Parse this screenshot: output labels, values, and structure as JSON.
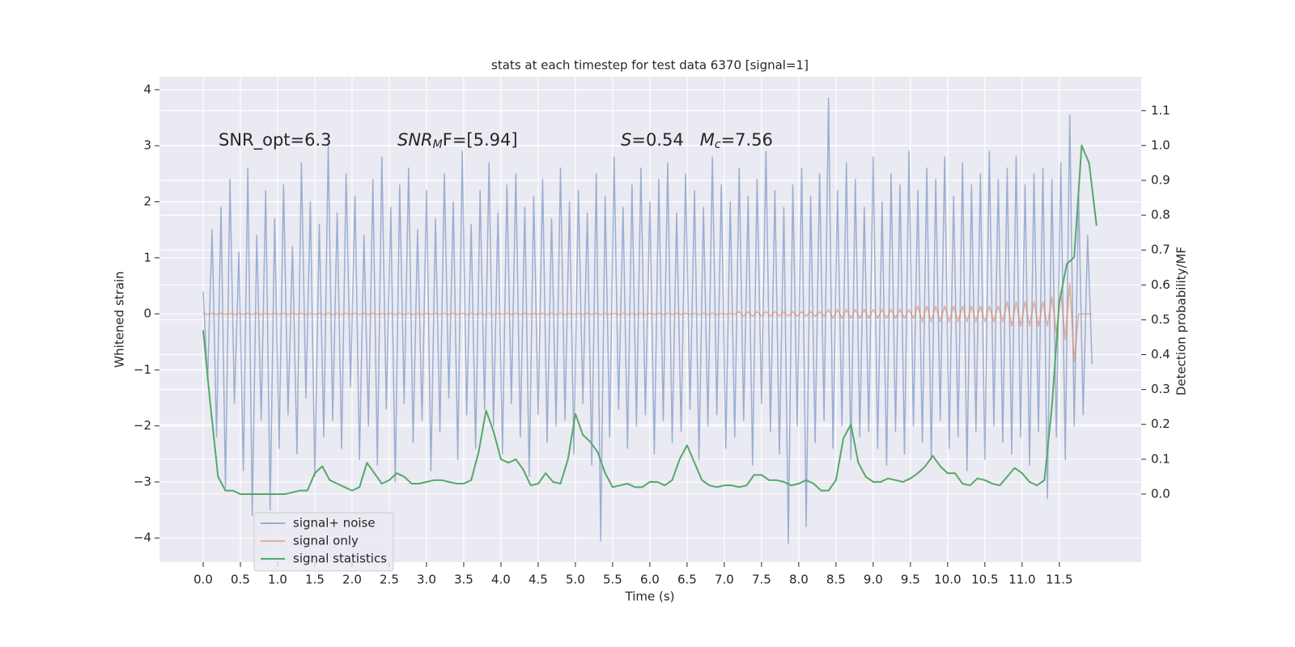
{
  "chart_data": {
    "type": "line",
    "title": "stats at each timestep for test data 6370 [signal=1]",
    "xlabel": "Time (s)",
    "ylabel": "Whitened strain",
    "y2label": "Detection probability/MF",
    "xlim": [
      -0.587,
      12.6
    ],
    "ylim": [
      -4.43,
      4.23
    ],
    "y2lim": [
      -0.195,
      1.197
    ],
    "xticks": [
      {
        "value": 0,
        "label": "0.0"
      },
      0.5,
      {
        "value": 1,
        "label": "1.0"
      },
      1.5,
      {
        "value": 2,
        "label": "2.0"
      },
      2.5,
      {
        "value": 3,
        "label": "3.0"
      },
      3.5,
      {
        "value": 4,
        "label": "4.0"
      },
      4.5,
      {
        "value": 5,
        "label": "5.0"
      },
      5.5,
      {
        "value": 6,
        "label": "6.0"
      },
      6.5,
      {
        "value": 7,
        "label": "7.0"
      },
      7.5,
      {
        "value": 8,
        "label": "8.0"
      },
      8.5,
      {
        "value": 9,
        "label": "9.0"
      },
      9.5,
      {
        "value": 10,
        "label": "10.0"
      },
      10.5,
      {
        "value": 11,
        "label": "11.0"
      },
      11.5
    ],
    "yticks": [
      {
        "value": -4,
        "label": "−4"
      },
      {
        "value": -3,
        "label": "−3"
      },
      {
        "value": -2,
        "label": "−2"
      },
      {
        "value": -1,
        "label": "−1"
      },
      0,
      1,
      2,
      3,
      4
    ],
    "y2ticks": [
      {
        "value": 0,
        "label": "0.0"
      },
      0.1,
      0.2,
      0.3,
      0.4,
      0.5,
      0.6,
      0.7,
      0.8,
      0.9,
      {
        "value": 1,
        "label": "1.0"
      },
      1.1
    ],
    "grid": true,
    "legend": "lower left",
    "annotations": [
      [
        {
          "text": "SNR_opt=6.3",
          "style": "normal"
        }
      ],
      [
        {
          "text": "SNR",
          "style": "italic"
        },
        {
          "text": "M",
          "style": "italic-sub"
        },
        {
          "text": "F=[5.94]",
          "style": "normal"
        }
      ],
      [
        {
          "text": "S",
          "style": "italic"
        },
        {
          "text": "=0.54   ",
          "style": "normal"
        },
        {
          "text": "M",
          "style": "italic"
        },
        {
          "text": "c",
          "style": "italic-sub"
        },
        {
          "text": "=7.56",
          "style": "normal"
        }
      ]
    ],
    "x": [
      0,
      0.06,
      0.12,
      0.18,
      0.24,
      0.3,
      0.36,
      0.42,
      0.48,
      0.54,
      0.6,
      0.66,
      0.72,
      0.78,
      0.84,
      0.9,
      0.96,
      1.02,
      1.08,
      1.14,
      1.2,
      1.26,
      1.32,
      1.38,
      1.44,
      1.5,
      1.56,
      1.62,
      1.68,
      1.74,
      1.8,
      1.86,
      1.92,
      1.98,
      2.04,
      2.1,
      2.16,
      2.22,
      2.28,
      2.34,
      2.4,
      2.46,
      2.52,
      2.58,
      2.64,
      2.7,
      2.76,
      2.82,
      2.88,
      2.94,
      3.0,
      3.06,
      3.12,
      3.18,
      3.24,
      3.3,
      3.36,
      3.42,
      3.48,
      3.54,
      3.6,
      3.66,
      3.72,
      3.78,
      3.84,
      3.9,
      3.96,
      4.02,
      4.08,
      4.14,
      4.2,
      4.26,
      4.32,
      4.38,
      4.44,
      4.5,
      4.56,
      4.62,
      4.68,
      4.74,
      4.8,
      4.86,
      4.92,
      4.98,
      5.04,
      5.1,
      5.16,
      5.22,
      5.28,
      5.34,
      5.4,
      5.46,
      5.52,
      5.58,
      5.64,
      5.7,
      5.76,
      5.82,
      5.88,
      5.94,
      6.0,
      6.06,
      6.12,
      6.18,
      6.24,
      6.3,
      6.36,
      6.42,
      6.48,
      6.54,
      6.6,
      6.66,
      6.72,
      6.78,
      6.84,
      6.9,
      6.96,
      7.02,
      7.08,
      7.14,
      7.2,
      7.26,
      7.32,
      7.38,
      7.44,
      7.5,
      7.56,
      7.62,
      7.68,
      7.74,
      7.8,
      7.86,
      7.92,
      7.98,
      8.04,
      8.1,
      8.16,
      8.22,
      8.28,
      8.34,
      8.4,
      8.46,
      8.52,
      8.58,
      8.64,
      8.7,
      8.76,
      8.82,
      8.88,
      8.94,
      9.0,
      9.06,
      9.12,
      9.18,
      9.24,
      9.3,
      9.36,
      9.42,
      9.48,
      9.54,
      9.6,
      9.66,
      9.72,
      9.78,
      9.84,
      9.9,
      9.96,
      10.02,
      10.08,
      10.14,
      10.2,
      10.26,
      10.32,
      10.38,
      10.44,
      10.5,
      10.56,
      10.62,
      10.68,
      10.74,
      10.8,
      10.86,
      10.92,
      10.98,
      11.04,
      11.1,
      11.16,
      11.22,
      11.28,
      11.34,
      11.4,
      11.46,
      11.52,
      11.58,
      11.64,
      11.7,
      11.76,
      11.82,
      11.88,
      11.94
    ],
    "series": [
      {
        "name": "signal+ noise",
        "color": "#4c72b0",
        "opacity": 0.5,
        "values": [
          0.4,
          -1.2,
          1.5,
          -2.2,
          1.9,
          -3.1,
          2.4,
          -1.6,
          1.1,
          -2.8,
          2.6,
          -3.6,
          1.4,
          -1.9,
          2.2,
          -3.5,
          1.7,
          -2.4,
          2.3,
          -1.8,
          1.2,
          -2.5,
          2.7,
          -1.5,
          2.0,
          -2.9,
          1.6,
          -2.2,
          3.0,
          -1.9,
          1.8,
          -2.4,
          2.5,
          -1.3,
          2.1,
          -2.6,
          1.4,
          -2.0,
          2.4,
          -2.7,
          2.8,
          -1.7,
          1.9,
          -3.0,
          2.3,
          -1.6,
          2.6,
          -2.3,
          1.5,
          -1.9,
          2.2,
          -2.8,
          1.7,
          -2.1,
          2.5,
          -1.5,
          2.0,
          -2.6,
          2.9,
          -1.8,
          1.6,
          -2.4,
          2.2,
          -1.7,
          2.7,
          -2.0,
          1.8,
          -2.5,
          2.3,
          -1.6,
          2.5,
          -2.2,
          1.9,
          -2.9,
          2.1,
          -1.8,
          2.4,
          -2.3,
          1.7,
          -2.0,
          2.6,
          -1.9,
          2.0,
          -2.5,
          2.2,
          -1.6,
          1.8,
          -2.7,
          2.5,
          -4.05,
          2.1,
          -2.2,
          2.8,
          -1.7,
          1.9,
          -2.4,
          2.3,
          -2.0,
          2.6,
          -1.8,
          2.0,
          -2.5,
          2.4,
          -1.9,
          2.7,
          -2.3,
          1.8,
          -2.1,
          2.5,
          -1.7,
          2.2,
          -2.6,
          1.9,
          -2.0,
          2.8,
          -1.8,
          2.3,
          -2.4,
          2.0,
          -2.2,
          2.6,
          -1.9,
          2.1,
          -2.7,
          2.4,
          -1.6,
          2.9,
          -2.1,
          2.2,
          -2.5,
          1.9,
          -4.1,
          2.3,
          -2.0,
          2.6,
          -3.8,
          2.1,
          -2.3,
          2.5,
          -1.9,
          3.85,
          -2.4,
          2.2,
          -2.0,
          2.7,
          -2.6,
          2.4,
          -2.2,
          1.9,
          -2.1,
          2.8,
          -2.4,
          2.0,
          -2.7,
          2.5,
          -2.1,
          2.3,
          -2.5,
          2.9,
          -2.0,
          2.2,
          -2.3,
          2.6,
          -2.6,
          2.4,
          -1.9,
          2.8,
          -2.4,
          2.1,
          -2.2,
          2.7,
          -2.8,
          2.3,
          -2.1,
          2.5,
          -2.6,
          2.9,
          -2.0,
          2.4,
          -2.3,
          2.6,
          -2.5,
          2.8,
          -2.2,
          2.3,
          -2.7,
          2.5,
          -2.1,
          2.6,
          -3.3,
          2.4,
          -2.2,
          2.7,
          -2.6,
          3.55,
          -2.0,
          2.1,
          -1.8,
          1.4,
          -0.9
        ]
      },
      {
        "name": "signal only",
        "color": "#dd8452",
        "opacity": 0.6,
        "values": [
          0.01,
          -0.01,
          0.01,
          -0.01,
          0.01,
          -0.01,
          0.01,
          -0.01,
          0.01,
          -0.01,
          0.01,
          -0.01,
          0.01,
          -0.01,
          0.01,
          -0.01,
          0.01,
          -0.01,
          0.01,
          -0.01,
          0.01,
          -0.01,
          0.01,
          -0.01,
          0.01,
          -0.01,
          0.01,
          -0.01,
          0.01,
          -0.01,
          0.01,
          -0.01,
          0.01,
          -0.01,
          0.01,
          -0.01,
          0.01,
          -0.01,
          0.01,
          -0.01,
          0.01,
          -0.01,
          0.01,
          -0.01,
          0.01,
          -0.01,
          0.01,
          -0.01,
          0.01,
          -0.01,
          0.01,
          -0.01,
          0.01,
          -0.01,
          0.01,
          -0.01,
          0.01,
          -0.01,
          0.01,
          -0.01,
          0.01,
          -0.01,
          0.01,
          -0.01,
          0.01,
          -0.01,
          0.01,
          -0.01,
          0.01,
          -0.01,
          0.01,
          -0.01,
          0.01,
          -0.01,
          0.01,
          -0.01,
          0.01,
          -0.01,
          0.01,
          -0.01,
          0.01,
          -0.01,
          0.01,
          -0.01,
          0.01,
          -0.01,
          0.01,
          -0.01,
          0.01,
          -0.01,
          0.01,
          -0.01,
          0.01,
          -0.01,
          0.01,
          -0.01,
          0.01,
          -0.01,
          0.01,
          -0.01,
          0.01,
          -0.01,
          0.01,
          -0.01,
          0.01,
          -0.01,
          0.01,
          -0.01,
          0.01,
          -0.01,
          0.01,
          -0.01,
          0.01,
          -0.01,
          0.01,
          -0.01,
          0.01,
          -0.01,
          0.01,
          -0.01,
          0.04,
          -0.04,
          0.04,
          -0.04,
          0.04,
          -0.04,
          0.04,
          -0.04,
          0.04,
          -0.04,
          0.04,
          -0.04,
          0.04,
          -0.04,
          0.04,
          -0.04,
          0.04,
          -0.04,
          0.04,
          -0.04,
          0.08,
          -0.08,
          0.08,
          -0.08,
          0.08,
          -0.08,
          0.08,
          -0.08,
          0.08,
          -0.08,
          0.08,
          -0.08,
          0.08,
          -0.08,
          0.08,
          -0.08,
          0.08,
          -0.08,
          0.08,
          -0.08,
          0.14,
          -0.14,
          0.14,
          -0.14,
          0.14,
          -0.14,
          0.14,
          -0.14,
          0.14,
          -0.14,
          0.14,
          -0.14,
          0.14,
          -0.14,
          0.14,
          -0.14,
          0.14,
          -0.14,
          0.14,
          -0.14,
          0.22,
          -0.22,
          0.22,
          -0.22,
          0.22,
          -0.22,
          0.22,
          -0.22,
          0.22,
          -0.22,
          0.3,
          -0.34,
          0.4,
          -0.46,
          0.55,
          -0.85,
          0,
          0,
          0,
          0
        ]
      },
      {
        "name": "signal statistics",
        "color": "#55a868",
        "opacity": 1,
        "axis": "y2",
        "x": [
          0,
          0.1,
          0.2,
          0.3,
          0.4,
          0.5,
          0.6,
          0.7,
          0.8,
          0.9,
          1.0,
          1.1,
          1.2,
          1.3,
          1.4,
          1.5,
          1.6,
          1.7,
          1.8,
          1.9,
          2.0,
          2.1,
          2.2,
          2.3,
          2.4,
          2.5,
          2.6,
          2.7,
          2.8,
          2.9,
          3.0,
          3.1,
          3.2,
          3.3,
          3.4,
          3.5,
          3.6,
          3.7,
          3.8,
          3.9,
          4.0,
          4.1,
          4.2,
          4.3,
          4.4,
          4.5,
          4.6,
          4.7,
          4.8,
          4.9,
          5.0,
          5.1,
          5.2,
          5.3,
          5.4,
          5.5,
          5.6,
          5.7,
          5.8,
          5.9,
          6.0,
          6.1,
          6.2,
          6.3,
          6.4,
          6.5,
          6.6,
          6.7,
          6.8,
          6.9,
          7.0,
          7.1,
          7.2,
          7.3,
          7.4,
          7.5,
          7.6,
          7.7,
          7.8,
          7.9,
          8.0,
          8.1,
          8.2,
          8.3,
          8.4,
          8.5,
          8.6,
          8.7,
          8.8,
          8.9,
          9.0,
          9.1,
          9.2,
          9.3,
          9.4,
          9.5,
          9.6,
          9.7,
          9.8,
          9.9,
          10.0,
          10.1,
          10.2,
          10.3,
          10.4,
          10.5,
          10.6,
          10.7,
          10.8,
          10.9,
          11.0,
          11.1,
          11.2,
          11.3,
          11.4,
          11.5,
          11.6,
          11.7,
          11.8,
          11.9,
          12.0
        ],
        "values": [
          0.47,
          0.25,
          0.05,
          0.01,
          0.01,
          0.0,
          0.0,
          0.0,
          0.0,
          0.0,
          0.0,
          0.0,
          0.005,
          0.01,
          0.01,
          0.06,
          0.08,
          0.04,
          0.03,
          0.02,
          0.01,
          0.02,
          0.09,
          0.06,
          0.03,
          0.04,
          0.06,
          0.05,
          0.03,
          0.03,
          0.035,
          0.04,
          0.04,
          0.035,
          0.03,
          0.03,
          0.04,
          0.12,
          0.24,
          0.18,
          0.1,
          0.09,
          0.1,
          0.07,
          0.025,
          0.03,
          0.06,
          0.035,
          0.03,
          0.1,
          0.23,
          0.17,
          0.15,
          0.12,
          0.06,
          0.02,
          0.025,
          0.03,
          0.02,
          0.02,
          0.035,
          0.035,
          0.025,
          0.04,
          0.1,
          0.14,
          0.09,
          0.04,
          0.025,
          0.02,
          0.025,
          0.025,
          0.02,
          0.025,
          0.055,
          0.055,
          0.04,
          0.04,
          0.035,
          0.025,
          0.03,
          0.04,
          0.03,
          0.01,
          0.01,
          0.04,
          0.16,
          0.2,
          0.09,
          0.05,
          0.035,
          0.035,
          0.045,
          0.04,
          0.035,
          0.045,
          0.06,
          0.08,
          0.11,
          0.08,
          0.06,
          0.06,
          0.03,
          0.025,
          0.045,
          0.04,
          0.03,
          0.025,
          0.05,
          0.075,
          0.06,
          0.035,
          0.025,
          0.04,
          0.25,
          0.55,
          0.66,
          0.68,
          1.0,
          0.95,
          0.77
        ]
      }
    ]
  }
}
